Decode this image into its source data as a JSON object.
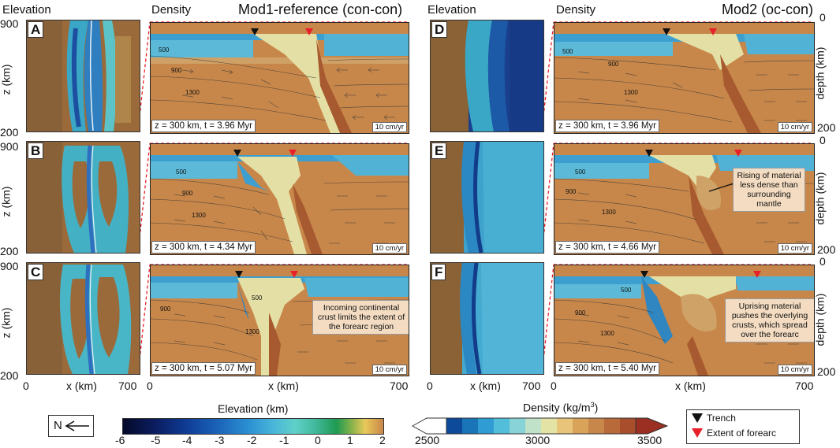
{
  "headers": {
    "elevation_left": "Elevation",
    "density_left": "Density",
    "elevation_right": "Elevation",
    "density_right": "Density",
    "model_left": "Mod1-reference (con-con)",
    "model_right": "Mod2 (oc-con)"
  },
  "panels": [
    {
      "label": "A",
      "info": "z = 300 km, t = 3.96 Myr",
      "scale": "10 cm/yr"
    },
    {
      "label": "B",
      "info": "z = 300 km, t = 4.34 Myr",
      "scale": "10 cm/yr"
    },
    {
      "label": "C",
      "info": "z = 300 km, t = 5.07 Myr",
      "scale": "10 cm/yr"
    },
    {
      "label": "D",
      "info": "z = 300 km, t = 3.96 Myr",
      "scale": "10 cm/yr"
    },
    {
      "label": "E",
      "info": "z = 300 km, t = 4.66 Myr",
      "scale": "10 cm/yr"
    },
    {
      "label": "F",
      "info": "z = 300 km, t = 5.40 Myr",
      "scale": "10 cm/yr"
    }
  ],
  "contour_labels": [
    "500",
    "900",
    "1300"
  ],
  "annotations": {
    "C": "Incoming continental crust limits the extent of the forearc region",
    "E": "Rising of material less dense than surrounding mantle",
    "F": "Uprising material pushes the overlying crusts, which spread over the forearc"
  },
  "axes": {
    "z_label": "z (km)",
    "z_top": "900",
    "z_bottom": "200",
    "depth_label": "depth (km)",
    "depth_top": "0",
    "depth_bottom": "200",
    "x_label": "x (km)",
    "x_min": "0",
    "x_max": "700"
  },
  "colorbars": {
    "elevation": {
      "title": "Elevation (km)",
      "ticks": [
        "-6",
        "-5",
        "-4",
        "-3",
        "-2",
        "-1",
        "0",
        "1",
        "2"
      ]
    },
    "density": {
      "title": "Density (kg/m",
      "title_sup": "3",
      "title_end": ")",
      "ticks": [
        "2500",
        "3000",
        "3500"
      ]
    }
  },
  "north_arrow": "N",
  "legend": {
    "trench": "Trench",
    "forearc": "Extent of forearc"
  },
  "colors": {
    "trench": "#111111",
    "forearc": "#e8202a",
    "guide": "#e8202a",
    "mantle": "#c8874a"
  }
}
